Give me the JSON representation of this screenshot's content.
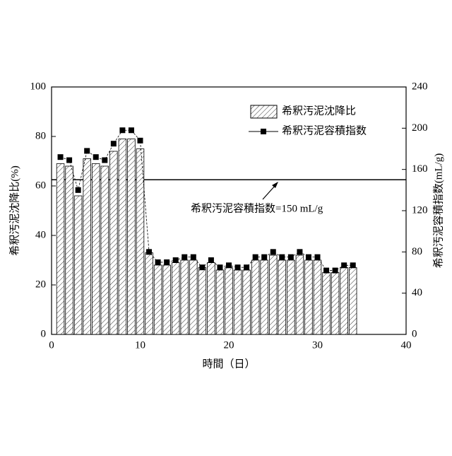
{
  "chart_data": {
    "type": "bar",
    "x": [
      1,
      2,
      3,
      4,
      5,
      6,
      7,
      8,
      9,
      10,
      11,
      12,
      13,
      14,
      15,
      16,
      17,
      18,
      19,
      20,
      21,
      22,
      23,
      24,
      25,
      26,
      27,
      28,
      29,
      30,
      31,
      32,
      33,
      34
    ],
    "series": [
      {
        "name": "希釈汚泥沈降比",
        "type": "bar",
        "color": "#000000",
        "values": [
          69,
          68,
          56,
          71,
          69,
          68,
          74,
          79,
          79,
          75,
          33,
          28,
          28,
          29,
          30,
          30,
          27,
          29,
          26,
          27,
          26,
          26,
          30,
          30,
          32,
          30,
          30,
          32,
          30,
          30,
          25,
          25,
          27,
          27
        ]
      },
      {
        "name": "希釈汚泥容積指数",
        "type": "line",
        "axis": "y2",
        "color": "#000000",
        "values": [
          172,
          169,
          140,
          178,
          172,
          169,
          185,
          198,
          198,
          188,
          80,
          70,
          70,
          72,
          75,
          75,
          65,
          72,
          65,
          67,
          65,
          65,
          75,
          75,
          80,
          75,
          75,
          80,
          75,
          75,
          62,
          62,
          67,
          67
        ]
      }
    ],
    "x_label": "時間（日）",
    "y_label": "希釈汚泥沈降比(%)",
    "y2_label": "希釈汚泥容積指数(mL/g)",
    "xlim": [
      0,
      40
    ],
    "xticks": [
      0,
      10,
      20,
      30,
      40
    ],
    "ylim": [
      0,
      100
    ],
    "yticks": [
      0,
      20,
      40,
      60,
      80,
      100
    ],
    "y2lim": [
      0,
      240
    ],
    "y2ticks": [
      0,
      40,
      80,
      120,
      160,
      200,
      240
    ],
    "reference_line": {
      "value": 150,
      "axis": "y2",
      "label": "希釈汚泥容積指数=150 mL/g"
    },
    "grid": false
  }
}
